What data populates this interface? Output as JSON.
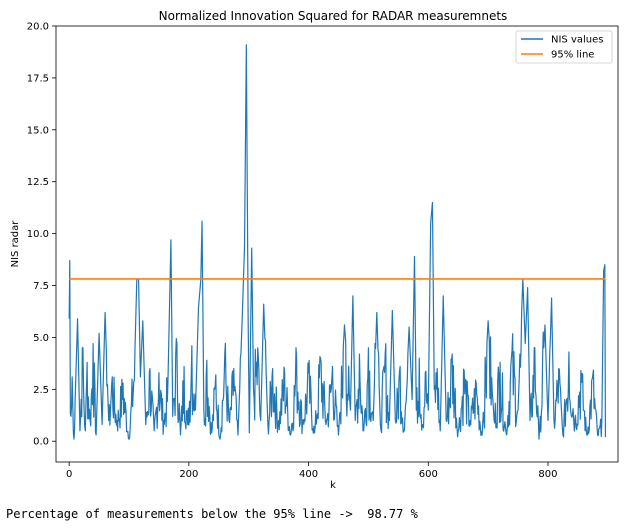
{
  "chart_data": {
    "type": "line",
    "title": "Normalized Innovation Squared for RADAR measuremnets",
    "xlabel": "k",
    "ylabel": "NIS radar",
    "xlim": [
      -22,
      917
    ],
    "ylim": [
      -1.0,
      20.0
    ],
    "x_ticks": [
      0,
      200,
      400,
      600,
      800
    ],
    "y_ticks": [
      0.0,
      2.5,
      5.0,
      7.5,
      10.0,
      12.5,
      15.0,
      17.5,
      20.0
    ],
    "y_tick_labels": [
      "0.0",
      "2.5",
      "5.0",
      "7.5",
      "10.0",
      "12.5",
      "15.0",
      "17.5",
      "20.0"
    ],
    "grid": false,
    "legend_position": "top-right",
    "series": [
      {
        "name": "NIS values",
        "color": "#1f77b4",
        "x_start": 0,
        "x_step": 1,
        "count": 897,
        "baseline_max": 4.0,
        "peaks": [
          [
            0,
            5.9
          ],
          [
            1,
            8.7
          ],
          [
            2,
            1.3
          ],
          [
            3,
            1.2
          ],
          [
            5,
            3.1
          ],
          [
            8,
            0.1
          ],
          [
            10,
            2.0
          ],
          [
            14,
            5.9
          ],
          [
            18,
            0.5
          ],
          [
            22,
            4.5
          ],
          [
            27,
            0.5
          ],
          [
            30,
            3.8
          ],
          [
            35,
            1.0
          ],
          [
            40,
            4.7
          ],
          [
            45,
            0.3
          ],
          [
            50,
            5.2
          ],
          [
            55,
            0.8
          ],
          [
            60,
            6.2
          ],
          [
            66,
            1.0
          ],
          [
            72,
            3.1
          ],
          [
            80,
            1.0
          ],
          [
            90,
            2.8
          ],
          [
            100,
            0.1
          ],
          [
            110,
            4.5
          ],
          [
            113,
            7.8
          ],
          [
            116,
            7.8
          ],
          [
            119,
            3.1
          ],
          [
            123,
            5.8
          ],
          [
            128,
            0.8
          ],
          [
            135,
            3.5
          ],
          [
            142,
            0.5
          ],
          [
            150,
            3.3
          ],
          [
            158,
            1.0
          ],
          [
            165,
            2.8
          ],
          [
            170,
            9.7
          ],
          [
            173,
            1.2
          ],
          [
            180,
            4.7
          ],
          [
            186,
            0.3
          ],
          [
            192,
            3.6
          ],
          [
            198,
            0.8
          ],
          [
            205,
            4.6
          ],
          [
            211,
            1.5
          ],
          [
            216,
            6.4
          ],
          [
            220,
            7.8
          ],
          [
            222,
            10.6
          ],
          [
            225,
            1.5
          ],
          [
            230,
            3.9
          ],
          [
            238,
            0.4
          ],
          [
            245,
            3.2
          ],
          [
            252,
            0.1
          ],
          [
            260,
            4.2
          ],
          [
            268,
            0.9
          ],
          [
            275,
            3.5
          ],
          [
            282,
            0.3
          ],
          [
            289,
            5.8
          ],
          [
            293,
            9.4
          ],
          [
            296,
            19.1
          ],
          [
            299,
            6.0
          ],
          [
            301,
            0.4
          ],
          [
            305,
            9.3
          ],
          [
            308,
            2.5
          ],
          [
            315,
            4.5
          ],
          [
            320,
            1.0
          ],
          [
            325,
            6.6
          ],
          [
            332,
            0.8
          ],
          [
            340,
            3.5
          ],
          [
            350,
            1.0
          ],
          [
            360,
            3.3
          ],
          [
            370,
            0.3
          ],
          [
            380,
            4.0
          ],
          [
            390,
            1.0
          ],
          [
            400,
            3.3
          ],
          [
            410,
            0.4
          ],
          [
            420,
            4.0
          ],
          [
            430,
            1.0
          ],
          [
            440,
            3.6
          ],
          [
            450,
            0.3
          ],
          [
            460,
            5.6
          ],
          [
            470,
            1.5
          ],
          [
            474,
            7.0
          ],
          [
            478,
            1.0
          ],
          [
            485,
            4.2
          ],
          [
            492,
            0.5
          ],
          [
            500,
            4.5
          ],
          [
            508,
            1.0
          ],
          [
            514,
            6.2
          ],
          [
            520,
            0.8
          ],
          [
            528,
            4.2
          ],
          [
            535,
            1.0
          ],
          [
            540,
            6.3
          ],
          [
            545,
            1.0
          ],
          [
            553,
            3.6
          ],
          [
            560,
            0.5
          ],
          [
            568,
            5.5
          ],
          [
            573,
            2.0
          ],
          [
            577,
            8.9
          ],
          [
            580,
            1.5
          ],
          [
            585,
            4.0
          ],
          [
            590,
            0.8
          ],
          [
            595,
            3.3
          ],
          [
            600,
            1.5
          ],
          [
            604,
            10.5
          ],
          [
            607,
            11.5
          ],
          [
            610,
            2.5
          ],
          [
            615,
            3.5
          ],
          [
            620,
            0.5
          ],
          [
            625,
            7.0
          ],
          [
            630,
            1.0
          ],
          [
            640,
            4.2
          ],
          [
            650,
            0.5
          ],
          [
            660,
            3.4
          ],
          [
            670,
            1.0
          ],
          [
            680,
            2.8
          ],
          [
            690,
            0.3
          ],
          [
            700,
            5.8
          ],
          [
            710,
            1.0
          ],
          [
            720,
            3.8
          ],
          [
            730,
            0.4
          ],
          [
            740,
            4.4
          ],
          [
            750,
            1.5
          ],
          [
            758,
            7.8
          ],
          [
            762,
            4.7
          ],
          [
            766,
            7.4
          ],
          [
            770,
            1.0
          ],
          [
            778,
            4.5
          ],
          [
            785,
            0.1
          ],
          [
            795,
            5.6
          ],
          [
            800,
            1.0
          ],
          [
            806,
            6.9
          ],
          [
            810,
            1.0
          ],
          [
            818,
            3.5
          ],
          [
            825,
            0.3
          ],
          [
            835,
            4.3
          ],
          [
            845,
            1.0
          ],
          [
            855,
            3.4
          ],
          [
            865,
            0.3
          ],
          [
            875,
            3.2
          ],
          [
            883,
            0.3
          ],
          [
            890,
            1.0
          ],
          [
            893,
            8.2
          ],
          [
            895,
            8.5
          ],
          [
            896,
            0.2
          ]
        ]
      },
      {
        "name": "95% line",
        "color": "#ff7f0e",
        "x": [
          0,
          896
        ],
        "y": [
          7.815,
          7.815
        ]
      }
    ]
  },
  "output": {
    "text": "Percentage of measurements below the 95% line ->  98.77 %"
  }
}
